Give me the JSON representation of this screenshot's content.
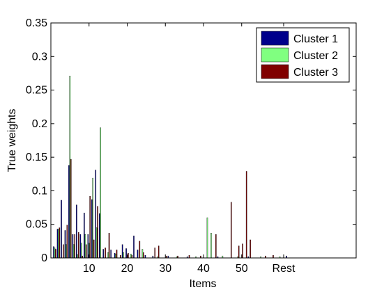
{
  "chart_data": {
    "type": "bar",
    "title": "",
    "xlabel": "Items",
    "ylabel": "True weights",
    "xlim": [
      0,
      80
    ],
    "ylim": [
      0,
      0.35
    ],
    "yticks": [
      "0",
      "0.05",
      "0.1",
      "0.15",
      "0.2",
      "0.25",
      "0.3",
      "0.35"
    ],
    "ytick_values": [
      0,
      0.05,
      0.1,
      0.15,
      0.2,
      0.25,
      0.3,
      0.35
    ],
    "xticks": [
      "10",
      "20",
      "30",
      "40",
      "50",
      "Rest"
    ],
    "xtick_values": [
      10,
      20,
      30,
      40,
      50,
      61
    ],
    "grid": false,
    "legend_position": "top-right",
    "series": [
      {
        "name": "Cluster 1",
        "color": "#00008b",
        "points": [
          [
            1,
            0.017
          ],
          [
            2,
            0.043
          ],
          [
            3,
            0.086
          ],
          [
            4,
            0.041
          ],
          [
            5,
            0.138
          ],
          [
            6,
            0.035
          ],
          [
            7,
            0.079
          ],
          [
            8,
            0.035
          ],
          [
            9,
            0.067
          ],
          [
            10,
            0.035
          ],
          [
            11,
            0.087
          ],
          [
            12,
            0.131
          ],
          [
            13,
            0.066
          ],
          [
            14,
            0.013
          ],
          [
            16,
            0.012
          ],
          [
            17,
            0.007
          ],
          [
            19,
            0.02
          ],
          [
            20,
            0.014
          ],
          [
            22,
            0.033
          ],
          [
            23,
            0.012
          ],
          [
            25,
            0.004
          ],
          [
            27,
            0.003
          ],
          [
            31,
            0.003
          ],
          [
            36,
            0.002
          ],
          [
            44,
            0.002
          ],
          [
            52,
            0.002
          ],
          [
            62,
            0.003
          ]
        ]
      },
      {
        "name": "Cluster 2",
        "color": "#80ff80",
        "points": [
          [
            1,
            0.015
          ],
          [
            2,
            0.043
          ],
          [
            4,
            0.02
          ],
          [
            5,
            0.271
          ],
          [
            6,
            0.02
          ],
          [
            7,
            0.005
          ],
          [
            8,
            0.022
          ],
          [
            9,
            0.035
          ],
          [
            10,
            0.022
          ],
          [
            11,
            0.119
          ],
          [
            12,
            0.045
          ],
          [
            13,
            0.194
          ],
          [
            15,
            0.008
          ],
          [
            17,
            0.006
          ],
          [
            19,
            0.008
          ],
          [
            21,
            0.006
          ],
          [
            24,
            0.013
          ],
          [
            28,
            0.002
          ],
          [
            33,
            0.002
          ],
          [
            38,
            0.002
          ],
          [
            41,
            0.06
          ],
          [
            42,
            0.037
          ],
          [
            45,
            0.003
          ],
          [
            49,
            0.002
          ],
          [
            55,
            0.002
          ],
          [
            60,
            0.002
          ]
        ]
      },
      {
        "name": "Cluster 3",
        "color": "#800000",
        "points": [
          [
            1,
            0.013
          ],
          [
            2,
            0.045
          ],
          [
            3,
            0.02
          ],
          [
            4,
            0.049
          ],
          [
            5,
            0.147
          ],
          [
            6,
            0.035
          ],
          [
            7,
            0.038
          ],
          [
            8,
            0.003
          ],
          [
            9,
            0.02
          ],
          [
            10,
            0.092
          ],
          [
            11,
            0.027
          ],
          [
            12,
            0.077
          ],
          [
            14,
            0.015
          ],
          [
            15,
            0.037
          ],
          [
            17,
            0.012
          ],
          [
            18,
            0.004
          ],
          [
            20,
            0.007
          ],
          [
            21,
            0.004
          ],
          [
            23,
            0.025
          ],
          [
            24,
            0.008
          ],
          [
            27,
            0.015
          ],
          [
            28,
            0.018
          ],
          [
            30,
            0.003
          ],
          [
            33,
            0.003
          ],
          [
            36,
            0.004
          ],
          [
            39,
            0.003
          ],
          [
            43,
            0.035
          ],
          [
            47,
            0.083
          ],
          [
            49,
            0.018
          ],
          [
            50,
            0.021
          ],
          [
            51,
            0.129
          ],
          [
            52,
            0.027
          ],
          [
            56,
            0.003
          ],
          [
            58,
            0.004
          ]
        ]
      }
    ]
  }
}
